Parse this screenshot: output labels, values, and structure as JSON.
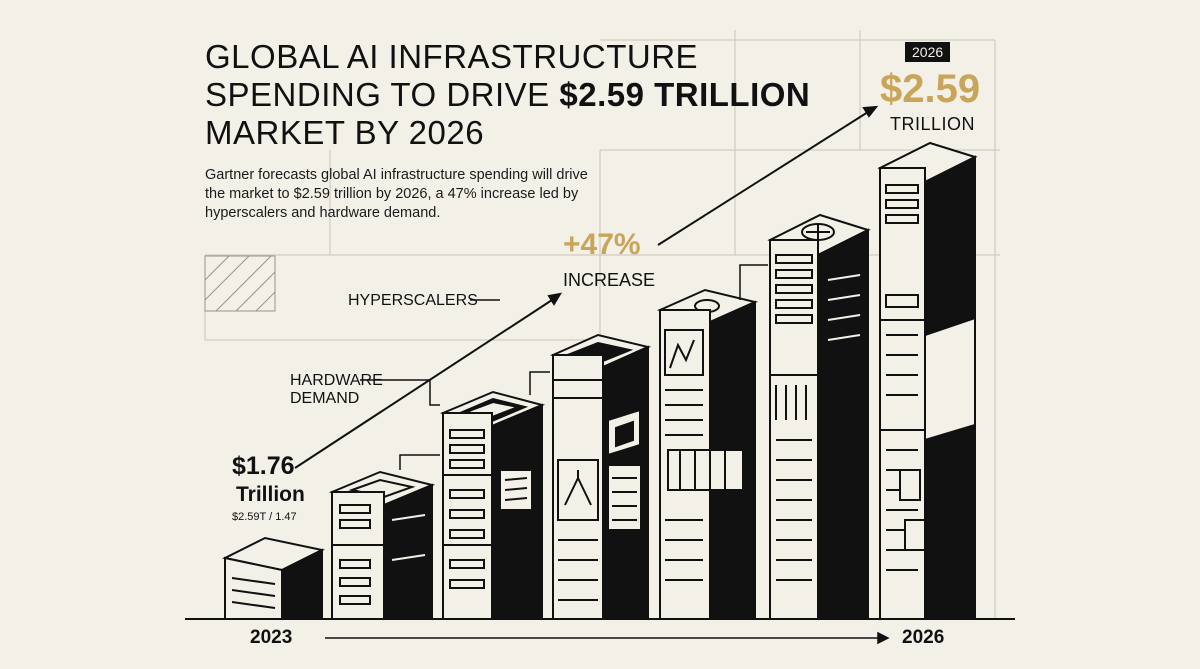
{
  "title": {
    "line1": "GLOBAL AI INFRASTRUCTURE",
    "line2_prefix": "SPENDING TO DRIVE ",
    "line2_highlight": "$2.59 TRILLION",
    "line3": "MARKET BY 2026"
  },
  "subtitle": "Gartner forecasts global AI infrastructure spending will drive the market to $2.59 trillion by 2026, a 47% increase led by hyperscalers and hardware demand.",
  "end": {
    "year_badge": "2026",
    "value": "$2.59",
    "unit": "TRILLION"
  },
  "growth": {
    "percent": "+47%",
    "label": "INCREASE"
  },
  "callouts": {
    "hyperscalers": "HYPERSCALERS",
    "hardware": "HARDWARE DEMAND"
  },
  "start": {
    "value": "$1.76",
    "unit": "Trillion",
    "note": "$2.59T / 1.47"
  },
  "axis": {
    "start_year": "2023",
    "end_year": "2026"
  },
  "colors": {
    "background": "#f3f0e8",
    "ink": "#111111",
    "accent_gold": "#c9a55a"
  }
}
